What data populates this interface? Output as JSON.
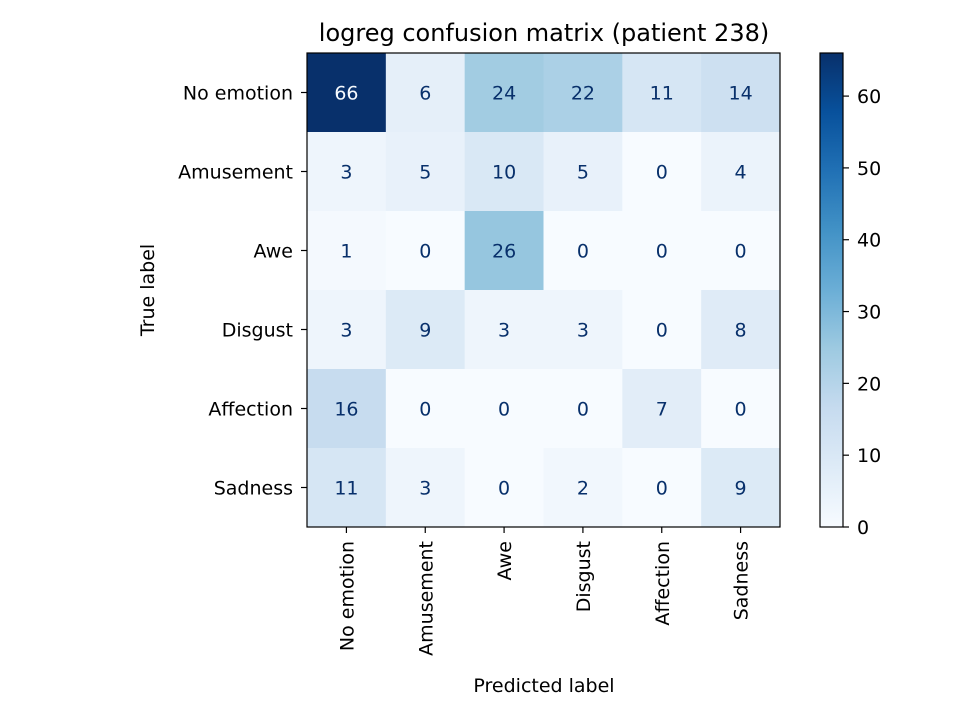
{
  "chart_data": {
    "type": "heatmap",
    "title": "logreg confusion matrix (patient 238)",
    "xlabel": "Predicted label",
    "ylabel": "True label",
    "x_categories": [
      "No emotion",
      "Amusement",
      "Awe",
      "Disgust",
      "Affection",
      "Sadness"
    ],
    "y_categories": [
      "No emotion",
      "Amusement",
      "Awe",
      "Disgust",
      "Affection",
      "Sadness"
    ],
    "values": [
      [
        66,
        6,
        24,
        22,
        11,
        14
      ],
      [
        3,
        5,
        10,
        5,
        0,
        4
      ],
      [
        1,
        0,
        26,
        0,
        0,
        0
      ],
      [
        3,
        9,
        3,
        3,
        0,
        8
      ],
      [
        16,
        0,
        0,
        0,
        7,
        0
      ],
      [
        11,
        3,
        0,
        2,
        0,
        9
      ]
    ],
    "colormap": "Blues",
    "vmin": 0,
    "vmax": 66,
    "colorbar_ticks": [
      0,
      10,
      20,
      30,
      40,
      50,
      60
    ],
    "text_color_dark": "#08306b",
    "text_color_light": "#f7fbff"
  }
}
